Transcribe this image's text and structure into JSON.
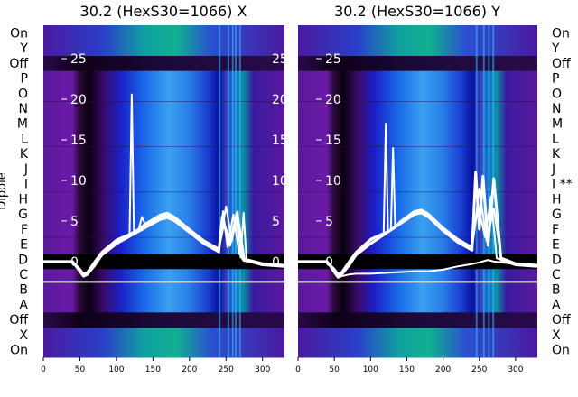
{
  "chart_data": [
    {
      "type": "heatmap",
      "title": "30.2 (HexS30=1066) X",
      "ylabel": "Dipole",
      "x_ticks": [
        0,
        50,
        100,
        150,
        200,
        250,
        300
      ],
      "xlim": [
        0,
        330
      ],
      "overlay_ticks": [
        0,
        5,
        10,
        15,
        20,
        25
      ],
      "overlay_ylim": [
        -2.5,
        28
      ],
      "dipole_labels": [
        "On",
        "X",
        "Off",
        "A",
        "B",
        "C",
        "D",
        "E",
        "F",
        "G",
        "H",
        "I",
        "J",
        "K",
        "L",
        "M",
        "N",
        "O",
        "P",
        "Off",
        "Y",
        "On"
      ],
      "bright_columns_x": [
        240,
        252,
        258,
        262,
        268
      ],
      "traces": [
        {
          "x": [
            0,
            40,
            50,
            55,
            60,
            70,
            80,
            100,
            120,
            140,
            160,
            170,
            180,
            200,
            220,
            240,
            245,
            255,
            265,
            275,
            300,
            330
          ],
          "y": [
            0,
            0,
            -1.2,
            -1.8,
            -1.6,
            -0.5,
            0.8,
            2.2,
            3.2,
            4.2,
            5.2,
            5.4,
            5.0,
            3.6,
            2.2,
            1.2,
            5.5,
            2.0,
            6.0,
            0.2,
            -0.4,
            -0.6
          ]
        },
        {
          "x": [
            0,
            40,
            50,
            55,
            60,
            70,
            80,
            100,
            120,
            140,
            160,
            170,
            180,
            200,
            220,
            240,
            247,
            256,
            264,
            272,
            300,
            330
          ],
          "y": [
            0,
            0,
            -1.0,
            -1.6,
            -1.4,
            -0.2,
            1.0,
            2.5,
            3.5,
            4.5,
            5.6,
            5.8,
            5.3,
            3.8,
            2.4,
            1.4,
            4.5,
            3.0,
            5.0,
            0.4,
            -0.3,
            -0.5
          ]
        },
        {
          "x": [
            0,
            40,
            50,
            55,
            60,
            70,
            80,
            100,
            118,
            121,
            124,
            140,
            160,
            170,
            180,
            200,
            220,
            240,
            250,
            258,
            266,
            270,
            274,
            278,
            300,
            330
          ],
          "y": [
            0,
            0,
            -0.9,
            -1.5,
            -1.3,
            0,
            1.2,
            2.7,
            3.4,
            20.6,
            3.6,
            4.7,
            5.8,
            6.0,
            5.5,
            4.0,
            2.6,
            1.6,
            6.8,
            2.5,
            6.2,
            0.5,
            6.0,
            0.3,
            -0.2,
            -0.4
          ]
        },
        {
          "x": [
            0,
            40,
            50,
            55,
            60,
            70,
            80,
            100,
            120,
            130,
            135,
            140,
            160,
            170,
            180,
            200,
            220,
            240,
            246,
            252,
            260,
            268,
            274,
            300,
            330
          ],
          "y": [
            0,
            0,
            -1.1,
            -1.7,
            -1.5,
            -0.4,
            0.9,
            2.3,
            3.3,
            3.8,
            5.5,
            4.4,
            5.4,
            5.6,
            5.1,
            3.7,
            2.3,
            1.3,
            6.2,
            1.8,
            5.8,
            1.0,
            0.1,
            -0.3,
            -0.5
          ]
        }
      ]
    },
    {
      "type": "heatmap",
      "title": "30.2 (HexS30=1066) Y",
      "x_ticks": [
        0,
        50,
        100,
        150,
        200,
        250,
        300
      ],
      "xlim": [
        0,
        330
      ],
      "overlay_ticks": [
        0,
        5,
        10,
        15,
        20,
        25
      ],
      "overlay_ylim": [
        -2.5,
        28
      ],
      "dipole_labels": [
        "On",
        "X",
        "Off",
        "A",
        "B",
        "C",
        "D",
        "E",
        "F",
        "G",
        "H",
        "I **",
        "J",
        "K",
        "L",
        "M",
        "N",
        "O",
        "P",
        "Off",
        "Y",
        "On"
      ],
      "bright_columns_x": [
        245,
        255,
        262,
        268
      ],
      "traces": [
        {
          "x": [
            0,
            40,
            50,
            55,
            60,
            70,
            80,
            100,
            120,
            140,
            160,
            170,
            180,
            200,
            220,
            240,
            245,
            250,
            255,
            262,
            270,
            280,
            300,
            330
          ],
          "y": [
            0,
            0,
            -1.2,
            -1.8,
            -1.6,
            -0.5,
            0.8,
            2.2,
            3.4,
            4.6,
            5.8,
            6.0,
            5.5,
            3.8,
            2.4,
            1.4,
            11.0,
            4.0,
            10.5,
            2.0,
            10.2,
            0.2,
            -0.4,
            -0.6
          ]
        },
        {
          "x": [
            0,
            40,
            50,
            55,
            60,
            70,
            80,
            100,
            118,
            121,
            124,
            140,
            160,
            170,
            180,
            200,
            220,
            240,
            248,
            258,
            266,
            274,
            300,
            330
          ],
          "y": [
            0,
            0,
            -1.0,
            -1.6,
            -1.4,
            -0.2,
            1.0,
            2.6,
            3.5,
            17.0,
            3.7,
            4.8,
            6.0,
            6.2,
            5.7,
            4.0,
            2.6,
            1.6,
            7.0,
            3.0,
            8.0,
            0.4,
            -0.3,
            -0.5
          ]
        },
        {
          "x": [
            0,
            40,
            50,
            55,
            60,
            70,
            80,
            100,
            128,
            131,
            134,
            140,
            160,
            170,
            180,
            200,
            220,
            240,
            250,
            260,
            270,
            280,
            300,
            330
          ],
          "y": [
            0,
            0,
            -0.9,
            -1.5,
            -1.3,
            0,
            1.2,
            2.8,
            3.9,
            14.0,
            4.1,
            4.9,
            6.2,
            6.4,
            5.9,
            4.2,
            2.8,
            1.8,
            9.0,
            2.5,
            6.5,
            0.5,
            -0.2,
            -0.4
          ]
        },
        {
          "x": [
            0,
            40,
            50,
            55,
            60,
            70,
            80,
            100,
            120,
            140,
            160,
            170,
            180,
            200,
            220,
            240,
            250,
            262,
            270,
            300,
            330
          ],
          "y": [
            0,
            0,
            -1.4,
            -2.0,
            -1.8,
            -1.6,
            -1.5,
            -1.5,
            -1.4,
            -1.3,
            -1.2,
            -1.2,
            -1.2,
            -1.0,
            -0.6,
            -0.3,
            -0.1,
            0.2,
            0.0,
            -0.3,
            -0.5
          ]
        }
      ]
    }
  ]
}
